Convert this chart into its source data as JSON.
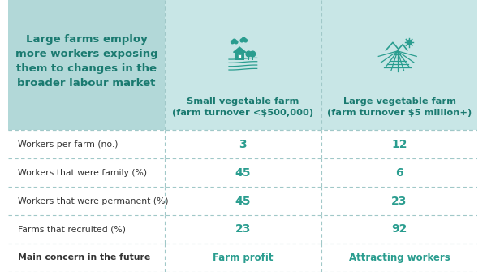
{
  "title_text": "Large farms employ\nmore workers exposing\nthem to changes in the\nbroader labour market",
  "col1_header": "Small vegetable farm\n(farm turnover <$500,000)",
  "col2_header": "Large vegetable farm\n(farm turnover $5 million+)",
  "rows": [
    {
      "label": "Workers per farm (no.)",
      "val1": "3",
      "val2": "12"
    },
    {
      "label": "Workers that were family (%)",
      "val1": "45",
      "val2": "6"
    },
    {
      "label": "Workers that were permanent (%)",
      "val1": "45",
      "val2": "23"
    },
    {
      "label": "Farms that recruited (%)",
      "val1": "23",
      "val2": "92"
    },
    {
      "label": "Main concern in the future",
      "val1": "Farm profit",
      "val2": "Attracting workers"
    }
  ],
  "header_bg": "#c8e6e6",
  "title_bg": "#b2d8d8",
  "teal_color": "#2a9d8f",
  "dark_teal": "#1a7a70",
  "label_color": "#333333",
  "line_color": "#a0c8c8",
  "fig_bg": "#ffffff"
}
